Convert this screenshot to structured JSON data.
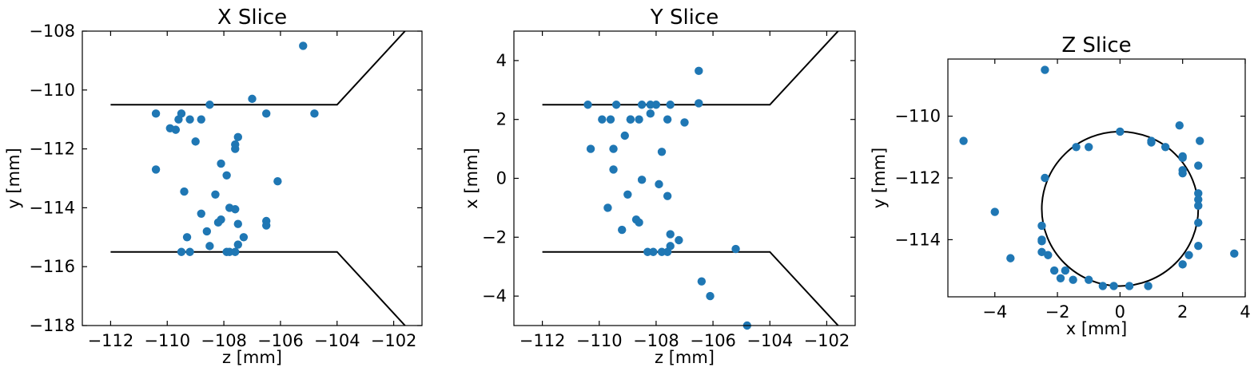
{
  "colors": {
    "points": "#1f77b4",
    "boundary": "#000000",
    "frame": "#000000"
  },
  "chart_data": [
    {
      "type": "scatter",
      "title": "X Slice",
      "xlabel": "z [mm]",
      "ylabel": "y [mm]",
      "xlim": [
        -113.0,
        -101.0
      ],
      "ylim": [
        -118,
        -108
      ],
      "xticks": [
        -112,
        -110,
        -108,
        -106,
        -104,
        -102
      ],
      "xtick_labels": [
        "−112",
        "−110",
        "−108",
        "−106",
        "−104",
        "−102"
      ],
      "yticks": [
        -118,
        -116,
        -114,
        -112,
        -110,
        -108
      ],
      "ytick_labels": [
        "−118",
        "−116",
        "−114",
        "−112",
        "−110",
        "−108"
      ],
      "boundary_lines": [
        {
          "x": [
            -112,
            -104,
            -101.6
          ],
          "y": [
            -110.5,
            -110.5,
            -108.0
          ]
        },
        {
          "x": [
            -112,
            -104,
            -101.6
          ],
          "y": [
            -115.5,
            -115.5,
            -118.0
          ]
        }
      ],
      "points": {
        "x": [
          -105.2,
          -110.4,
          -109.9,
          -109.6,
          -109.5,
          -109.2,
          -108.8,
          -108.5,
          -107.0,
          -106.5,
          -104.8,
          -109.7,
          -109.0,
          -107.5,
          -107.6,
          -107.6,
          -110.4,
          -108.1,
          -107.9,
          -109.4,
          -106.1,
          -108.3,
          -107.8,
          -107.6,
          -108.8,
          -108.1,
          -108.2,
          -107.5,
          -106.5,
          -106.5,
          -108.6,
          -109.3,
          -107.3,
          -107.5,
          -108.5,
          -109.5,
          -109.2,
          -107.9,
          -107.8,
          -107.6
        ],
        "y": [
          -108.5,
          -110.8,
          -111.3,
          -111.0,
          -110.8,
          -111.0,
          -111.0,
          -110.5,
          -110.3,
          -110.8,
          -110.8,
          -111.35,
          -111.75,
          -111.6,
          -111.85,
          -112.0,
          -112.7,
          -112.5,
          -112.9,
          -113.45,
          -113.1,
          -113.55,
          -114.0,
          -114.05,
          -114.2,
          -114.4,
          -114.5,
          -114.55,
          -114.45,
          -114.6,
          -114.8,
          -115.0,
          -115.0,
          -115.25,
          -115.3,
          -115.5,
          -115.5,
          -115.5,
          -115.5,
          -115.5
        ]
      }
    },
    {
      "type": "scatter",
      "title": "Y Slice",
      "xlabel": "z [mm]",
      "ylabel": "x [mm]",
      "xlim": [
        -113.0,
        -101.0
      ],
      "ylim": [
        -5,
        5
      ],
      "xticks": [
        -112,
        -110,
        -108,
        -106,
        -104,
        -102
      ],
      "xtick_labels": [
        "−112",
        "−110",
        "−108",
        "−106",
        "−104",
        "−102"
      ],
      "yticks": [
        -4,
        -2,
        0,
        2,
        4
      ],
      "ytick_labels": [
        "−4",
        "−2",
        "0",
        "2",
        "4"
      ],
      "boundary_lines": [
        {
          "x": [
            -112,
            -104,
            -101.6
          ],
          "y": [
            2.5,
            2.5,
            5.0
          ]
        },
        {
          "x": [
            -112,
            -104,
            -101.6
          ],
          "y": [
            -2.5,
            -2.5,
            -5.0
          ]
        }
      ],
      "points": {
        "x": [
          -106.5,
          -110.4,
          -109.4,
          -108.9,
          -108.5,
          -108.2,
          -108.0,
          -107.5,
          -106.5,
          -109.9,
          -109.6,
          -108.9,
          -108.6,
          -108.2,
          -107.6,
          -107.0,
          -109.1,
          -110.3,
          -109.5,
          -107.8,
          -109.5,
          -108.5,
          -107.9,
          -109.0,
          -107.6,
          -109.7,
          -108.7,
          -108.6,
          -109.2,
          -107.5,
          -107.2,
          -107.5,
          -107.6,
          -108.3,
          -108.1,
          -107.8,
          -105.2,
          -106.4,
          -106.1,
          -104.8
        ],
        "y": [
          3.65,
          2.5,
          2.5,
          2.0,
          2.5,
          2.2,
          2.5,
          2.5,
          2.55,
          2.0,
          2.0,
          2.0,
          2.0,
          2.5,
          2.0,
          1.9,
          1.45,
          1.0,
          1.0,
          0.9,
          0.3,
          -0.05,
          -0.2,
          -0.55,
          -0.6,
          -1.0,
          -1.4,
          -1.5,
          -1.75,
          -1.9,
          -2.1,
          -2.3,
          -2.5,
          -2.5,
          -2.5,
          -2.5,
          -2.4,
          -3.5,
          -4.0,
          -5.0
        ]
      }
    },
    {
      "type": "scatter",
      "title": "Z Slice",
      "xlabel": "x [mm]",
      "ylabel": "y [mm]",
      "xlim": [
        -5.5,
        4.0
      ],
      "ylim": [
        -115.85,
        -108.15
      ],
      "xticks": [
        -4,
        -2,
        0,
        2,
        4
      ],
      "xtick_labels": [
        "−4",
        "−2",
        "0",
        "2",
        "4"
      ],
      "yticks": [
        -114,
        -112,
        -110
      ],
      "ytick_labels": [
        "−114",
        "−112",
        "−110"
      ],
      "circle": {
        "cx": 0,
        "cy": -113.0,
        "r": 2.5
      },
      "points": {
        "x": [
          -2.4,
          -5.0,
          0.0,
          -1.4,
          -1.0,
          1.0,
          1.0,
          1.45,
          1.9,
          2.0,
          2.0,
          2.55,
          2.0,
          2.5,
          -2.4,
          2.0,
          2.5,
          2.5,
          2.5,
          -4.0,
          2.5,
          -2.5,
          -3.5,
          -2.5,
          -2.5,
          -2.5,
          -2.3,
          2.5,
          3.65,
          2.2,
          -2.1,
          -1.9,
          -1.75,
          -1.5,
          2.0,
          -1.0,
          -0.55,
          -0.2,
          0.3,
          0.9
        ],
        "y": [
          -108.5,
          -110.8,
          -110.5,
          -111.0,
          -111.0,
          -110.8,
          -110.85,
          -111.0,
          -110.3,
          -111.3,
          -111.35,
          -110.8,
          -111.75,
          -111.6,
          -112.0,
          -111.85,
          -112.5,
          -112.7,
          -112.9,
          -113.1,
          -113.45,
          -113.55,
          -114.6,
          -114.0,
          -114.05,
          -114.4,
          -114.5,
          -114.2,
          -114.45,
          -114.5,
          -115.0,
          -115.25,
          -115.0,
          -115.3,
          -114.8,
          -115.3,
          -115.5,
          -115.5,
          -115.5,
          -115.5
        ]
      }
    }
  ]
}
